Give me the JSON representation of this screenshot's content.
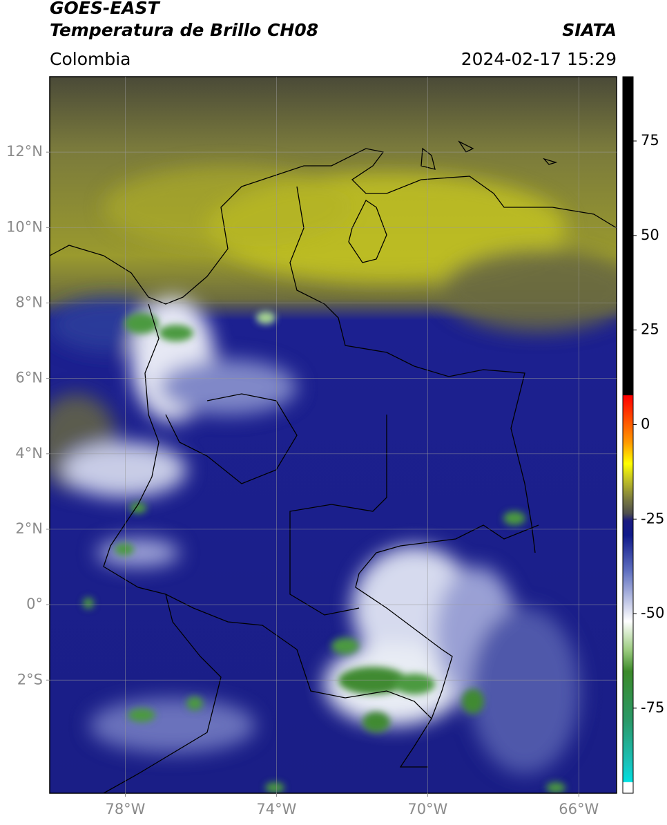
{
  "header": {
    "title": "GOES-EAST",
    "subtitle": "Temperatura de Brillo CH08",
    "source": "SIATA",
    "region": "Colombia",
    "datetime": "2024-02-17 15:29"
  },
  "map": {
    "lonlim": [
      -80,
      -65
    ],
    "latlim": [
      -5,
      14
    ],
    "lon_ticks": [
      {
        "value": -78,
        "label": "78°W"
      },
      {
        "value": -74,
        "label": "74°W"
      },
      {
        "value": -70,
        "label": "70°W"
      },
      {
        "value": -66,
        "label": "66°W"
      }
    ],
    "lat_ticks": [
      {
        "value": 12,
        "label": "12°N"
      },
      {
        "value": 10,
        "label": "10°N"
      },
      {
        "value": 8,
        "label": "8°N"
      },
      {
        "value": 6,
        "label": "6°N"
      },
      {
        "value": 4,
        "label": "4°N"
      },
      {
        "value": 2,
        "label": "2°N"
      },
      {
        "value": 0,
        "label": "0°"
      },
      {
        "value": -2,
        "label": "2°S"
      }
    ]
  },
  "colorbar": {
    "lim": [
      -97.5,
      92
    ],
    "ticks": [
      75,
      50,
      25,
      0,
      -25,
      -50,
      -75
    ]
  }
}
